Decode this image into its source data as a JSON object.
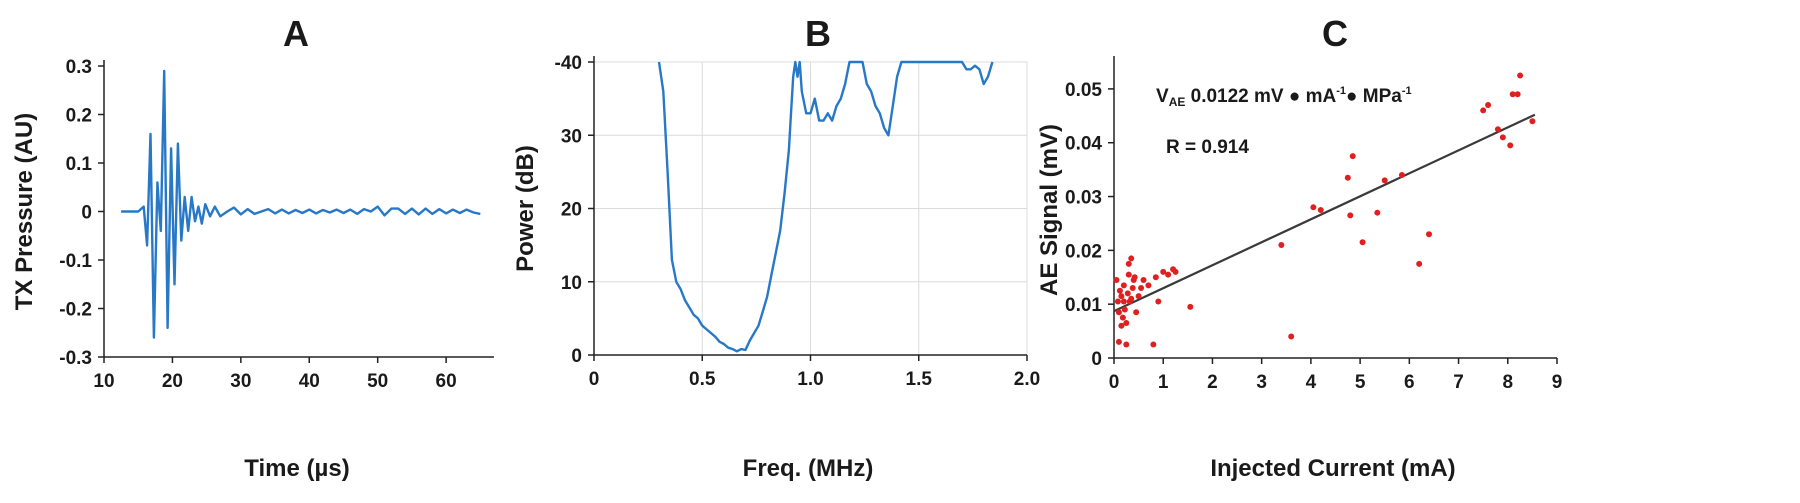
{
  "chart_data": [
    {
      "type": "line",
      "panel_label": "A",
      "xlabel": "Time (µs)",
      "ylabel": "TX Pressure (AU)",
      "xlim": [
        10,
        67
      ],
      "ylim": [
        -0.3,
        0.3
      ],
      "xticks": [
        "10",
        "20",
        "30",
        "40",
        "50",
        "60"
      ],
      "yticks": [
        "0.3",
        "0.2",
        "0.1",
        "0",
        "-0.1",
        "-0.2",
        "-0.3"
      ],
      "grid": false,
      "color": "#2878c8",
      "series": [
        {
          "x": [
            12.5,
            15.0,
            15.8,
            16.3,
            16.8,
            17.3,
            17.8,
            18.3,
            18.8,
            19.3,
            19.8,
            20.3,
            20.8,
            21.3,
            21.8,
            22.3,
            22.8,
            23.3,
            23.8,
            24.3,
            24.8,
            25.5,
            26.2,
            27.0,
            28.0,
            29.0,
            30.0,
            31.0,
            32.0,
            33.0,
            34.0,
            35.0,
            36.0,
            37.0,
            38.0,
            39.0,
            40.0,
            41.0,
            42.0,
            43.0,
            44.0,
            45.0,
            46.0,
            47.0,
            48.0,
            49.0,
            50.0,
            51.0,
            52.0,
            53.0,
            54.0,
            55.0,
            56.0,
            57.0,
            58.0,
            59.0,
            60.0,
            61.0,
            62.0,
            63.0,
            64.0,
            65.0
          ],
          "y": [
            0.0,
            0.0,
            0.01,
            -0.07,
            0.16,
            -0.26,
            0.06,
            -0.04,
            0.29,
            -0.24,
            0.13,
            -0.15,
            0.14,
            -0.06,
            0.03,
            -0.04,
            0.03,
            -0.02,
            0.01,
            -0.025,
            0.015,
            -0.01,
            0.01,
            -0.01,
            0.0,
            0.008,
            -0.006,
            0.005,
            -0.005,
            0.0,
            0.005,
            -0.004,
            0.004,
            -0.004,
            0.003,
            -0.003,
            0.004,
            -0.004,
            0.003,
            -0.002,
            0.004,
            -0.003,
            0.004,
            -0.005,
            0.005,
            0.0,
            0.01,
            -0.008,
            0.006,
            0.006,
            -0.005,
            0.006,
            -0.006,
            0.006,
            -0.005,
            0.005,
            -0.004,
            0.004,
            -0.003,
            0.004,
            -0.002,
            -0.005
          ]
        }
      ]
    },
    {
      "type": "line",
      "panel_label": "B",
      "xlabel": "Freq. (MHz)",
      "ylabel": "Power (dB)",
      "xlim": [
        0,
        2.0
      ],
      "ylim": [
        0,
        -40
      ],
      "xticks": [
        "0",
        "0.5",
        "1.0",
        "1.5",
        "2.0"
      ],
      "yticks": [
        "0",
        "10",
        "20",
        "30",
        "-40"
      ],
      "grid": true,
      "color": "#2878c8",
      "series": [
        {
          "x": [
            0.3,
            0.32,
            0.34,
            0.36,
            0.38,
            0.4,
            0.42,
            0.44,
            0.46,
            0.48,
            0.5,
            0.52,
            0.54,
            0.56,
            0.58,
            0.6,
            0.62,
            0.64,
            0.66,
            0.68,
            0.7,
            0.72,
            0.74,
            0.76,
            0.78,
            0.8,
            0.82,
            0.84,
            0.86,
            0.88,
            0.9,
            0.91,
            0.92,
            0.93,
            0.94,
            0.95,
            0.96,
            0.98,
            1.0,
            1.02,
            1.04,
            1.06,
            1.08,
            1.1,
            1.12,
            1.14,
            1.16,
            1.18,
            1.2,
            1.22,
            1.24,
            1.26,
            1.28,
            1.3,
            1.32,
            1.34,
            1.36,
            1.38,
            1.4,
            1.42,
            1.44,
            1.46,
            1.48,
            1.5,
            1.6,
            1.7,
            1.72,
            1.74,
            1.76,
            1.78,
            1.8,
            1.82,
            1.84
          ],
          "y": [
            -40,
            -36,
            -25,
            -13,
            -10,
            -9,
            -7.5,
            -6.5,
            -5.5,
            -5,
            -4,
            -3.5,
            -3,
            -2.5,
            -1.8,
            -1.5,
            -1,
            -0.8,
            -0.5,
            -0.8,
            -0.7,
            -2,
            -3,
            -4,
            -6,
            -8,
            -11,
            -14,
            -17,
            -22,
            -28,
            -33,
            -38,
            -40,
            -38,
            -40,
            -36,
            -33,
            -33,
            -35,
            -32,
            -32,
            -33,
            -32,
            -34,
            -35,
            -37,
            -40,
            -40,
            -40,
            -40,
            -37,
            -36,
            -34,
            -33,
            -31,
            -30,
            -34,
            -38,
            -40,
            -40,
            -40,
            -40,
            -40,
            -40,
            -40,
            -39,
            -39,
            -39.5,
            -39,
            -37,
            -38,
            -40
          ]
        }
      ]
    },
    {
      "type": "scatter",
      "panel_label": "C",
      "xlabel": "Injected Current (mA)",
      "ylabel": "AE Signal (mV)",
      "xlim": [
        0,
        9
      ],
      "ylim": [
        0,
        0.055
      ],
      "xticks": [
        "0",
        "1",
        "2",
        "3",
        "4",
        "5",
        "6",
        "7",
        "8",
        "9"
      ],
      "yticks": [
        "0.05",
        "0.04",
        "0.03",
        "0.02",
        "0.01",
        "0"
      ],
      "grid": false,
      "point_color": "#e02020",
      "fit_color": "#3a3a3a",
      "fit": {
        "x": [
          0,
          8.55
        ],
        "y": [
          0.0087,
          0.0452
        ]
      },
      "annotations": {
        "v_prefix": "V",
        "v_sub": "AE",
        "v_text1": " 0.0122 mV ● mA",
        "v_sup1": "-1",
        "v_text2": "● MPa",
        "v_sup2": "-1",
        "r_text": "R = 0.914"
      },
      "points": {
        "x": [
          0.05,
          0.08,
          0.1,
          0.1,
          0.12,
          0.15,
          0.15,
          0.18,
          0.2,
          0.2,
          0.22,
          0.25,
          0.25,
          0.28,
          0.3,
          0.3,
          0.32,
          0.35,
          0.35,
          0.38,
          0.4,
          0.42,
          0.45,
          0.5,
          0.55,
          0.6,
          0.7,
          0.8,
          0.85,
          0.9,
          1.0,
          1.1,
          1.2,
          1.25,
          1.55,
          3.4,
          3.6,
          4.05,
          4.2,
          4.75,
          4.8,
          4.85,
          5.05,
          5.35,
          5.5,
          5.85,
          6.2,
          6.4,
          7.5,
          7.6,
          7.8,
          7.9,
          8.05,
          8.1,
          8.2,
          8.25,
          8.5
        ],
        "y": [
          0.0145,
          0.0105,
          0.003,
          0.0085,
          0.0125,
          0.006,
          0.0115,
          0.0075,
          0.0135,
          0.0105,
          0.009,
          0.0025,
          0.0065,
          0.012,
          0.0175,
          0.0155,
          0.0105,
          0.011,
          0.0185,
          0.013,
          0.0145,
          0.015,
          0.0085,
          0.0115,
          0.013,
          0.0145,
          0.0135,
          0.0025,
          0.015,
          0.0105,
          0.016,
          0.0155,
          0.0165,
          0.016,
          0.0095,
          0.021,
          0.004,
          0.028,
          0.0275,
          0.0335,
          0.0265,
          0.0375,
          0.0215,
          0.027,
          0.033,
          0.034,
          0.0175,
          0.023,
          0.046,
          0.047,
          0.0425,
          0.041,
          0.0395,
          0.049,
          0.049,
          0.0525,
          0.044
        ]
      }
    }
  ]
}
